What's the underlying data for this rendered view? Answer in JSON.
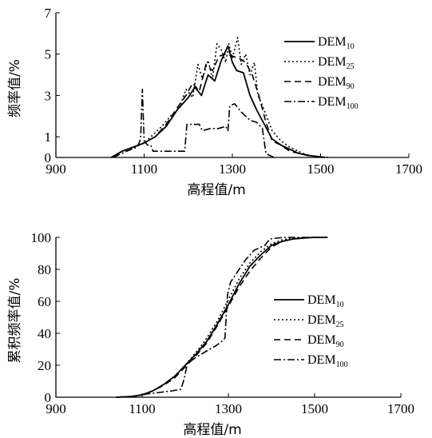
{
  "chart_data": [
    {
      "type": "line",
      "title": "",
      "xlabel": "高程值/m",
      "ylabel": "频率值/%",
      "xlim": [
        900,
        1700
      ],
      "ylim": [
        0,
        7
      ],
      "x_ticks": [
        "900",
        "1100",
        "1300",
        "1500",
        "1700"
      ],
      "y_ticks": [
        "0",
        "1",
        "3",
        "5",
        "7"
      ],
      "legend_position": "right",
      "series": [
        {
          "name": "DEM",
          "sub": "10",
          "style": "solid",
          "points": [
            [
              1025,
              0
            ],
            [
              1050,
              0.3
            ],
            [
              1075,
              0.5
            ],
            [
              1100,
              0.7
            ],
            [
              1125,
              1.0
            ],
            [
              1150,
              1.5
            ],
            [
              1175,
              2.3
            ],
            [
              1200,
              2.9
            ],
            [
              1215,
              3.4
            ],
            [
              1230,
              3.0
            ],
            [
              1245,
              4.0
            ],
            [
              1260,
              3.7
            ],
            [
              1275,
              4.7
            ],
            [
              1290,
              5.4
            ],
            [
              1300,
              4.6
            ],
            [
              1310,
              4.2
            ],
            [
              1325,
              4.1
            ],
            [
              1340,
              3.0
            ],
            [
              1355,
              2.3
            ],
            [
              1370,
              1.7
            ],
            [
              1390,
              0.9
            ],
            [
              1410,
              0.6
            ],
            [
              1430,
              0.4
            ],
            [
              1450,
              0.2
            ],
            [
              1470,
              0.1
            ],
            [
              1490,
              0.05
            ],
            [
              1510,
              0
            ]
          ]
        },
        {
          "name": "DEM",
          "sub": "25",
          "style": "dotted",
          "points": [
            [
              1030,
              0
            ],
            [
              1050,
              0.3
            ],
            [
              1075,
              0.5
            ],
            [
              1100,
              0.7
            ],
            [
              1120,
              1.1
            ],
            [
              1140,
              1.5
            ],
            [
              1160,
              2.0
            ],
            [
              1180,
              2.4
            ],
            [
              1195,
              3.3
            ],
            [
              1210,
              2.9
            ],
            [
              1222,
              4.5
            ],
            [
              1232,
              3.8
            ],
            [
              1245,
              4.7
            ],
            [
              1255,
              3.8
            ],
            [
              1265,
              5.5
            ],
            [
              1275,
              5.2
            ],
            [
              1285,
              4.6
            ],
            [
              1292,
              5.5
            ],
            [
              1300,
              4.8
            ],
            [
              1312,
              5.8
            ],
            [
              1320,
              4.5
            ],
            [
              1330,
              5.0
            ],
            [
              1340,
              4.0
            ],
            [
              1350,
              4.6
            ],
            [
              1358,
              3.0
            ],
            [
              1370,
              2.4
            ],
            [
              1390,
              1.3
            ],
            [
              1410,
              0.8
            ],
            [
              1430,
              0.5
            ],
            [
              1450,
              0.3
            ],
            [
              1470,
              0.1
            ],
            [
              1490,
              0.05
            ],
            [
              1520,
              0
            ]
          ]
        },
        {
          "name": "DEM",
          "sub": "90",
          "style": "dashed",
          "points": [
            [
              1030,
              0
            ],
            [
              1050,
              0.3
            ],
            [
              1075,
              0.5
            ],
            [
              1100,
              0.7
            ],
            [
              1125,
              1.0
            ],
            [
              1150,
              1.6
            ],
            [
              1175,
              2.4
            ],
            [
              1195,
              3.0
            ],
            [
              1210,
              3.6
            ],
            [
              1225,
              3.2
            ],
            [
              1240,
              4.5
            ],
            [
              1255,
              4.2
            ],
            [
              1270,
              4.9
            ],
            [
              1285,
              5.0
            ],
            [
              1300,
              4.9
            ],
            [
              1315,
              4.8
            ],
            [
              1330,
              4.6
            ],
            [
              1345,
              4.0
            ],
            [
              1360,
              3.0
            ],
            [
              1375,
              1.8
            ],
            [
              1390,
              0.8
            ],
            [
              1410,
              0.6
            ],
            [
              1430,
              0.3
            ],
            [
              1450,
              0.2
            ],
            [
              1475,
              0.1
            ],
            [
              1510,
              0
            ]
          ]
        },
        {
          "name": "DEM",
          "sub": "100",
          "style": "dashdot",
          "points": [
            [
              1030,
              0
            ],
            [
              1060,
              0.3
            ],
            [
              1085,
              0.5
            ],
            [
              1092,
              0.9
            ],
            [
              1096,
              3.3
            ],
            [
              1100,
              0.8
            ],
            [
              1108,
              0.6
            ],
            [
              1115,
              0.6
            ],
            [
              1120,
              0.3
            ],
            [
              1150,
              0.3
            ],
            [
              1175,
              0.3
            ],
            [
              1192,
              0.3
            ],
            [
              1197,
              1.6
            ],
            [
              1225,
              1.6
            ],
            [
              1232,
              1.3
            ],
            [
              1250,
              1.4
            ],
            [
              1268,
              1.4
            ],
            [
              1285,
              1.5
            ],
            [
              1290,
              1.3
            ],
            [
              1294,
              2.5
            ],
            [
              1305,
              2.6
            ],
            [
              1320,
              2.2
            ],
            [
              1340,
              1.8
            ],
            [
              1355,
              1.7
            ],
            [
              1368,
              1.4
            ],
            [
              1376,
              0.2
            ],
            [
              1384,
              0.1
            ],
            [
              1395,
              0
            ]
          ]
        }
      ]
    },
    {
      "type": "line",
      "title": "",
      "xlabel": "高程值/m",
      "ylabel": "累积频率值/%",
      "xlim": [
        900,
        1700
      ],
      "ylim": [
        0,
        100
      ],
      "x_ticks": [
        "900",
        "1100",
        "1300",
        "1500",
        "1700"
      ],
      "y_ticks": [
        "0",
        "20",
        "40",
        "60",
        "80",
        "100"
      ],
      "legend_position": "right",
      "series": [
        {
          "name": "DEM",
          "sub": "10",
          "style": "solid",
          "points": [
            [
              1040,
              0
            ],
            [
              1075,
              0.5
            ],
            [
              1100,
              1.5
            ],
            [
              1125,
              4
            ],
            [
              1150,
              8
            ],
            [
              1175,
              13
            ],
            [
              1200,
              20
            ],
            [
              1225,
              27
            ],
            [
              1250,
              35
            ],
            [
              1275,
              46
            ],
            [
              1300,
              58
            ],
            [
              1325,
              71
            ],
            [
              1350,
              82
            ],
            [
              1375,
              89
            ],
            [
              1400,
              95
            ],
            [
              1425,
              97.5
            ],
            [
              1450,
              99
            ],
            [
              1475,
              99.6
            ],
            [
              1500,
              100
            ],
            [
              1530,
              100
            ]
          ]
        },
        {
          "name": "DEM",
          "sub": "25",
          "style": "dotted",
          "points": [
            [
              1040,
              0
            ],
            [
              1075,
              0.5
            ],
            [
              1100,
              1.5
            ],
            [
              1125,
              4
            ],
            [
              1150,
              8
            ],
            [
              1175,
              13
            ],
            [
              1200,
              20
            ],
            [
              1225,
              28
            ],
            [
              1250,
              37
            ],
            [
              1275,
              48
            ],
            [
              1300,
              61
            ],
            [
              1325,
              74
            ],
            [
              1350,
              84
            ],
            [
              1375,
              91
            ],
            [
              1400,
              96
            ],
            [
              1425,
              98.5
            ],
            [
              1450,
              99.5
            ],
            [
              1475,
              99.8
            ],
            [
              1500,
              100
            ],
            [
              1530,
              100
            ]
          ]
        },
        {
          "name": "DEM",
          "sub": "90",
          "style": "dashed",
          "points": [
            [
              1040,
              0
            ],
            [
              1075,
              0.5
            ],
            [
              1100,
              1.5
            ],
            [
              1125,
              4
            ],
            [
              1150,
              7.5
            ],
            [
              1175,
              12
            ],
            [
              1200,
              19
            ],
            [
              1225,
              26
            ],
            [
              1250,
              34
            ],
            [
              1275,
              45
            ],
            [
              1300,
              57
            ],
            [
              1325,
              69
            ],
            [
              1350,
              79
            ],
            [
              1375,
              87
            ],
            [
              1400,
              94
            ],
            [
              1425,
              97.5
            ],
            [
              1450,
              99
            ],
            [
              1475,
              99.6
            ],
            [
              1500,
              100
            ],
            [
              1530,
              100
            ]
          ]
        },
        {
          "name": "DEM",
          "sub": "100",
          "style": "dashdot",
          "points": [
            [
              1040,
              0
            ],
            [
              1080,
              0.5
            ],
            [
              1110,
              2
            ],
            [
              1140,
              3
            ],
            [
              1170,
              4
            ],
            [
              1190,
              5
            ],
            [
              1197,
              11
            ],
            [
              1205,
              21
            ],
            [
              1225,
              25
            ],
            [
              1250,
              29
            ],
            [
              1270,
              32
            ],
            [
              1285,
              35
            ],
            [
              1292,
              37
            ],
            [
              1298,
              64
            ],
            [
              1305,
              72
            ],
            [
              1320,
              78
            ],
            [
              1340,
              86
            ],
            [
              1360,
              92
            ],
            [
              1385,
              95
            ],
            [
              1390,
              97
            ],
            [
              1397,
              99
            ],
            [
              1410,
              99.5
            ],
            [
              1430,
              100
            ],
            [
              1500,
              100
            ],
            [
              1530,
              100
            ]
          ]
        }
      ]
    }
  ]
}
